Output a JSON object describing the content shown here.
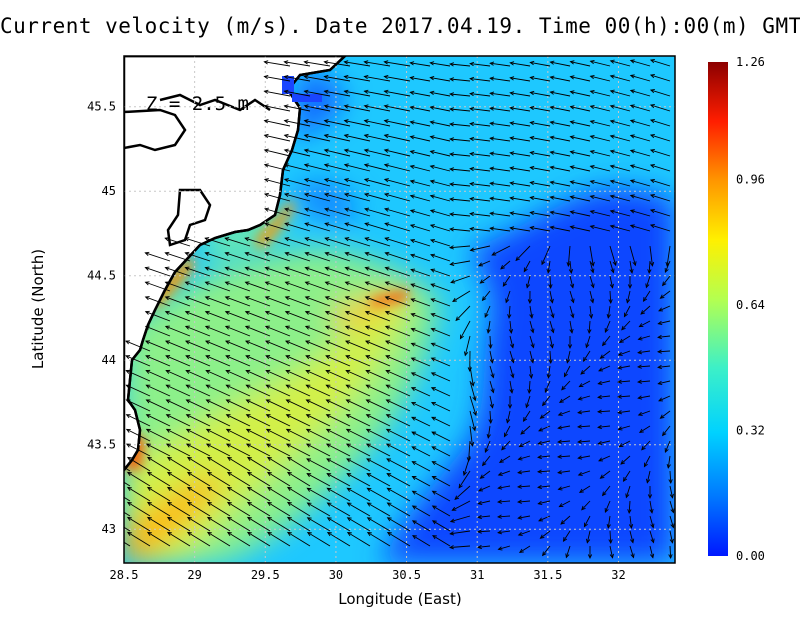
{
  "title": "Current velocity (m/s). Date 2017.04.19. Time 00(h):00(m) GMT",
  "depth_label": "Z = 2.5 m",
  "x_axis": {
    "label": "Longitude (East)",
    "ticks": [
      28.5,
      29,
      29.5,
      30,
      30.5,
      31,
      31.5,
      32
    ],
    "tick_labels": [
      "28.5",
      "29",
      "29.5",
      "30",
      "30.5",
      "31",
      "31.5",
      "32"
    ],
    "range": [
      28.5,
      32.4
    ]
  },
  "y_axis": {
    "label": "Latitude (North)",
    "ticks": [
      43,
      43.5,
      44,
      44.5,
      45,
      45.5
    ],
    "tick_labels": [
      "43",
      "43.5",
      "44",
      "44.5",
      "45",
      "45.5"
    ],
    "range": [
      42.8,
      45.8
    ]
  },
  "colorbar": {
    "range": [
      0.0,
      1.26
    ],
    "tick_values": [
      0.0,
      0.32,
      0.64,
      0.96,
      1.26
    ],
    "tick_labels": [
      "0.00",
      "0.32",
      "0.64",
      "0.96",
      "1.26"
    ],
    "colors": [
      "#0018ff",
      "#0078ff",
      "#00d2ff",
      "#3cf0c8",
      "#b4ff50",
      "#fff000",
      "#ff9600",
      "#ff1e00",
      "#8c0000"
    ]
  },
  "colors": {
    "land": "#ffffff",
    "coastline": "#000000",
    "grid": "#c8c8c8",
    "arrow": "#000000"
  },
  "grid": "dotted"
}
